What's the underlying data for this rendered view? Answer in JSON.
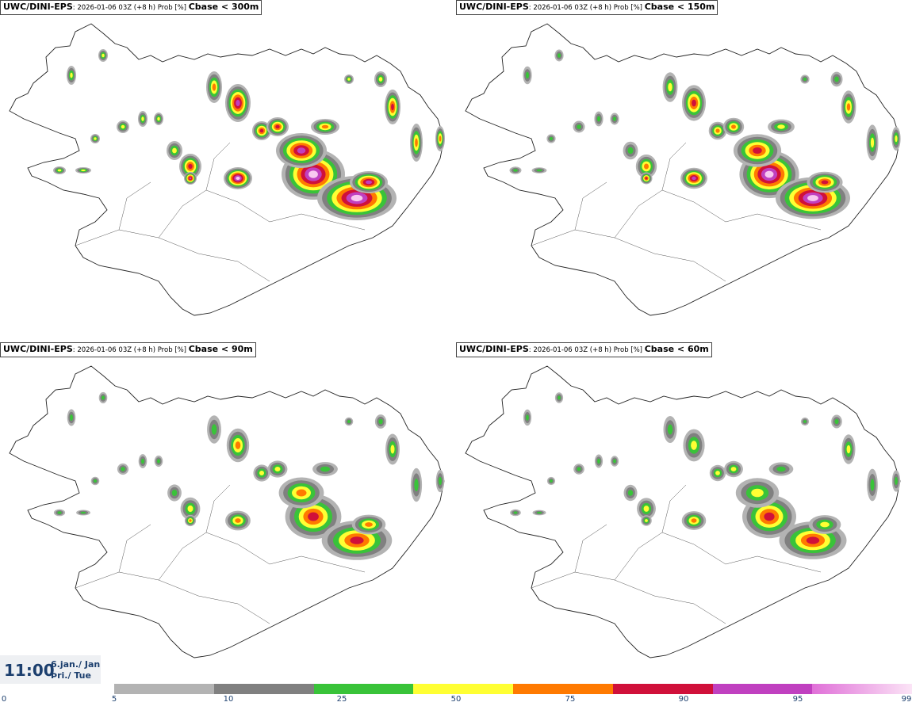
{
  "panels": [
    {
      "model": "UWC/DINI-EPS",
      "meta": ": 2026-01-06 03Z (+8 h) Prob [%] ",
      "variable": "Cbase < 300m",
      "intensity": 1.0
    },
    {
      "model": "UWC/DINI-EPS",
      "meta": ": 2026-01-06 03Z (+8 h) Prob [%] ",
      "variable": "Cbase < 150m",
      "intensity": 0.8
    },
    {
      "model": "UWC/DINI-EPS",
      "meta": ": 2026-01-06 03Z (+8 h) Prob [%] ",
      "variable": "Cbase < 90m",
      "intensity": 0.62
    },
    {
      "model": "UWC/DINI-EPS",
      "meta": ": 2026-01-06 03Z (+8 h) Prob [%] ",
      "variable": "Cbase < 60m",
      "intensity": 0.5
    }
  ],
  "time": {
    "clock": "11:00",
    "date_line1": "6.jan./ Jan",
    "date_line2": "Þri./ Tue"
  },
  "legend": {
    "ticks": [
      "0",
      "5",
      "10",
      "25",
      "50",
      "75",
      "90",
      "95",
      "99"
    ],
    "colors": [
      "#b3b3b3",
      "#808080",
      "#39c339",
      "#ffff33",
      "#ff7a00",
      "#d0103a",
      "#c040c0",
      "#f8c8f0"
    ]
  }
}
